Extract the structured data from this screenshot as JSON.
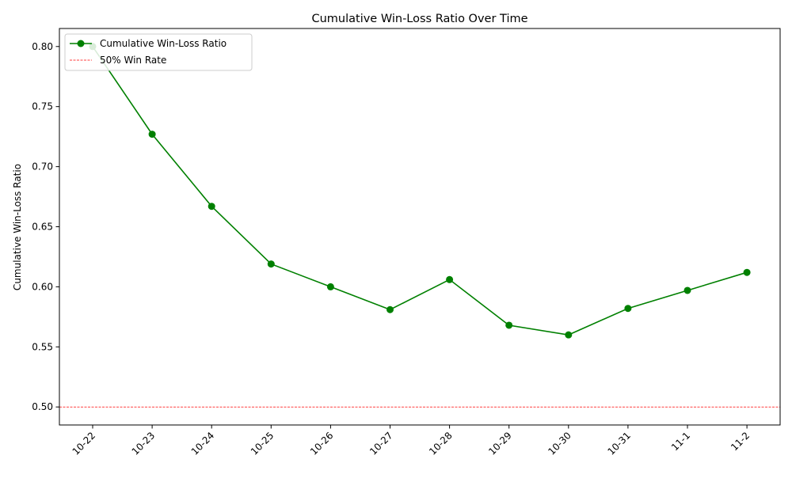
{
  "chart_data": {
    "type": "line",
    "title": "Cumulative Win-Loss Ratio Over Time",
    "xlabel": "",
    "ylabel": "Cumulative Win-Loss Ratio",
    "categories": [
      "10-22",
      "10-23",
      "10-24",
      "10-25",
      "10-26",
      "10-27",
      "10-28",
      "10-29",
      "10-30",
      "10-31",
      "11-1",
      "11-2"
    ],
    "series": [
      {
        "name": "Cumulative Win-Loss Ratio",
        "color": "#008000",
        "marker": "circle",
        "values": [
          0.8,
          0.727,
          0.667,
          0.619,
          0.6,
          0.581,
          0.606,
          0.568,
          0.56,
          0.582,
          0.597,
          0.612
        ]
      }
    ],
    "reference_lines": [
      {
        "name": "50% Win Rate",
        "y": 0.5,
        "color": "#ff0000",
        "style": "dashed"
      }
    ],
    "ylim": [
      0.485,
      0.815
    ],
    "yticks": [
      0.5,
      0.55,
      0.6,
      0.65,
      0.7,
      0.75,
      0.8
    ],
    "ytick_labels": [
      "0.50",
      "0.55",
      "0.60",
      "0.65",
      "0.70",
      "0.75",
      "0.80"
    ],
    "grid": false,
    "legend_position": "top-left"
  }
}
